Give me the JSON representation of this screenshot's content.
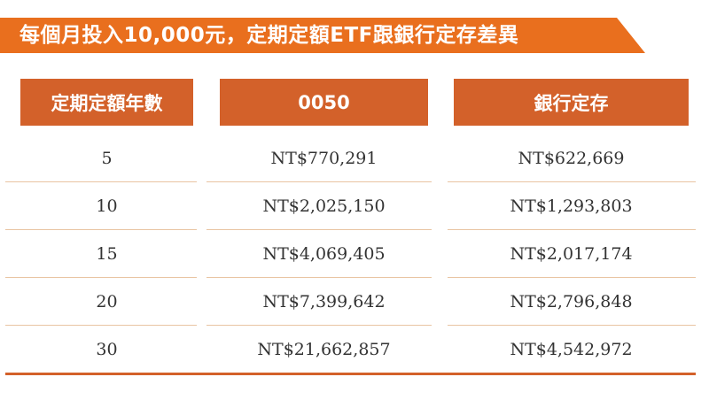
{
  "title": "每個月投入10,000元，定期定額ETF跟銀行定存差異",
  "colors": {
    "banner": "#e96f1e",
    "header": "#d3612a",
    "separator": "#e9c4a2",
    "text": "#333333"
  },
  "table": {
    "headers": {
      "years": "定期定額年數",
      "etf": "0050",
      "bank": "銀行定存"
    },
    "rows": [
      {
        "years": "5",
        "etf": "NT$770,291",
        "bank": "NT$622,669"
      },
      {
        "years": "10",
        "etf": "NT$2,025,150",
        "bank": "NT$1,293,803"
      },
      {
        "years": "15",
        "etf": "NT$4,069,405",
        "bank": "NT$2,017,174"
      },
      {
        "years": "20",
        "etf": "NT$7,399,642",
        "bank": "NT$2,796,848"
      },
      {
        "years": "30",
        "etf": "NT$21,662,857",
        "bank": "NT$4,542,972"
      }
    ]
  }
}
